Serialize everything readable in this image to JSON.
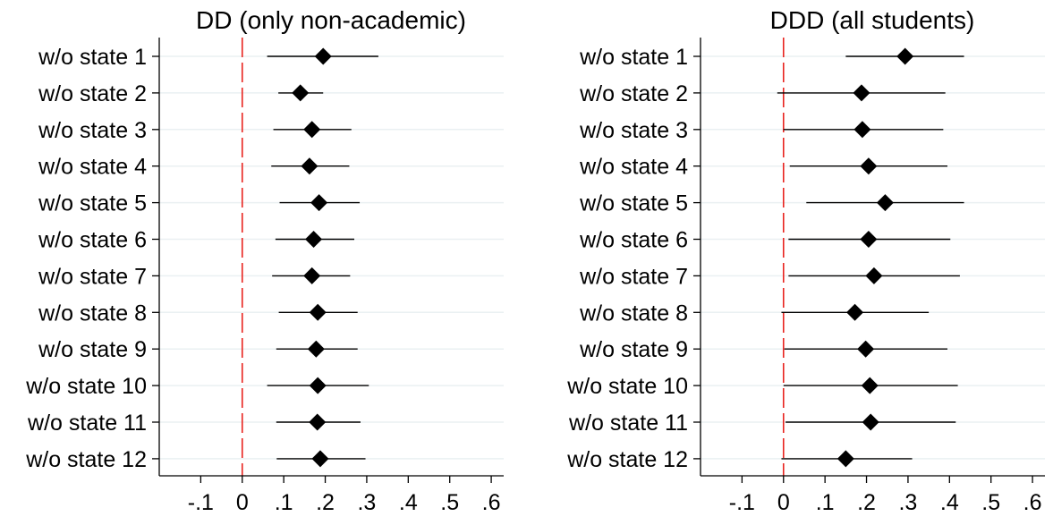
{
  "chart_data": [
    {
      "type": "coefficient-plot",
      "title": "DD (only non-academic)",
      "xlabel": "",
      "ylabel": "",
      "xlim": [
        -0.2,
        0.63
      ],
      "xticks": [
        -0.1,
        0,
        0.1,
        0.2,
        0.3,
        0.4,
        0.5,
        0.6
      ],
      "xtick_labels": [
        "-.1",
        "0",
        ".1",
        ".2",
        ".3",
        ".4",
        ".5",
        ".6"
      ],
      "categories": [
        "w/o state 1",
        "w/o state 2",
        "w/o state 3",
        "w/o state 4",
        "w/o state 5",
        "w/o state 6",
        "w/o state 7",
        "w/o state 8",
        "w/o state 9",
        "w/o state 10",
        "w/o state 11",
        "w/o state 12"
      ],
      "estimates": [
        0.195,
        0.14,
        0.168,
        0.162,
        0.185,
        0.172,
        0.168,
        0.182,
        0.178,
        0.182,
        0.181,
        0.188
      ],
      "ci_low": [
        0.06,
        0.087,
        0.075,
        0.07,
        0.09,
        0.08,
        0.072,
        0.088,
        0.082,
        0.06,
        0.082,
        0.083
      ],
      "ci_high": [
        0.328,
        0.195,
        0.263,
        0.258,
        0.283,
        0.27,
        0.26,
        0.278,
        0.278,
        0.305,
        0.285,
        0.297
      ],
      "reference_line": 0,
      "grid": true
    },
    {
      "type": "coefficient-plot",
      "title": "DDD (all students)",
      "xlabel": "",
      "ylabel": "",
      "xlim": [
        -0.2,
        0.63
      ],
      "xticks": [
        -0.1,
        0,
        0.1,
        0.2,
        0.3,
        0.4,
        0.5,
        0.6
      ],
      "xtick_labels": [
        "-.1",
        "0",
        ".1",
        ".2",
        ".3",
        ".4",
        ".5",
        ".6"
      ],
      "categories": [
        "w/o state 1",
        "w/o state 2",
        "w/o state 3",
        "w/o state 4",
        "w/o state 5",
        "w/o state 6",
        "w/o state 7",
        "w/o state 8",
        "w/o state 9",
        "w/o state 10",
        "w/o state 11",
        "w/o state 12"
      ],
      "estimates": [
        0.293,
        0.188,
        0.19,
        0.205,
        0.245,
        0.205,
        0.218,
        0.172,
        0.198,
        0.208,
        0.21,
        0.15
      ],
      "ci_low": [
        0.15,
        -0.015,
        0,
        0.015,
        0.055,
        0.012,
        0.012,
        -0.005,
        0.002,
        0,
        0.005,
        -0.005
      ],
      "ci_high": [
        0.435,
        0.39,
        0.385,
        0.395,
        0.435,
        0.402,
        0.425,
        0.35,
        0.395,
        0.42,
        0.415,
        0.31
      ],
      "reference_line": 0,
      "grid": true
    }
  ],
  "colors": {
    "reference_line": "#e8231f",
    "marker": "#000000",
    "ci_line": "#000000",
    "grid": "#eaf0f2",
    "axis": "#000000"
  }
}
